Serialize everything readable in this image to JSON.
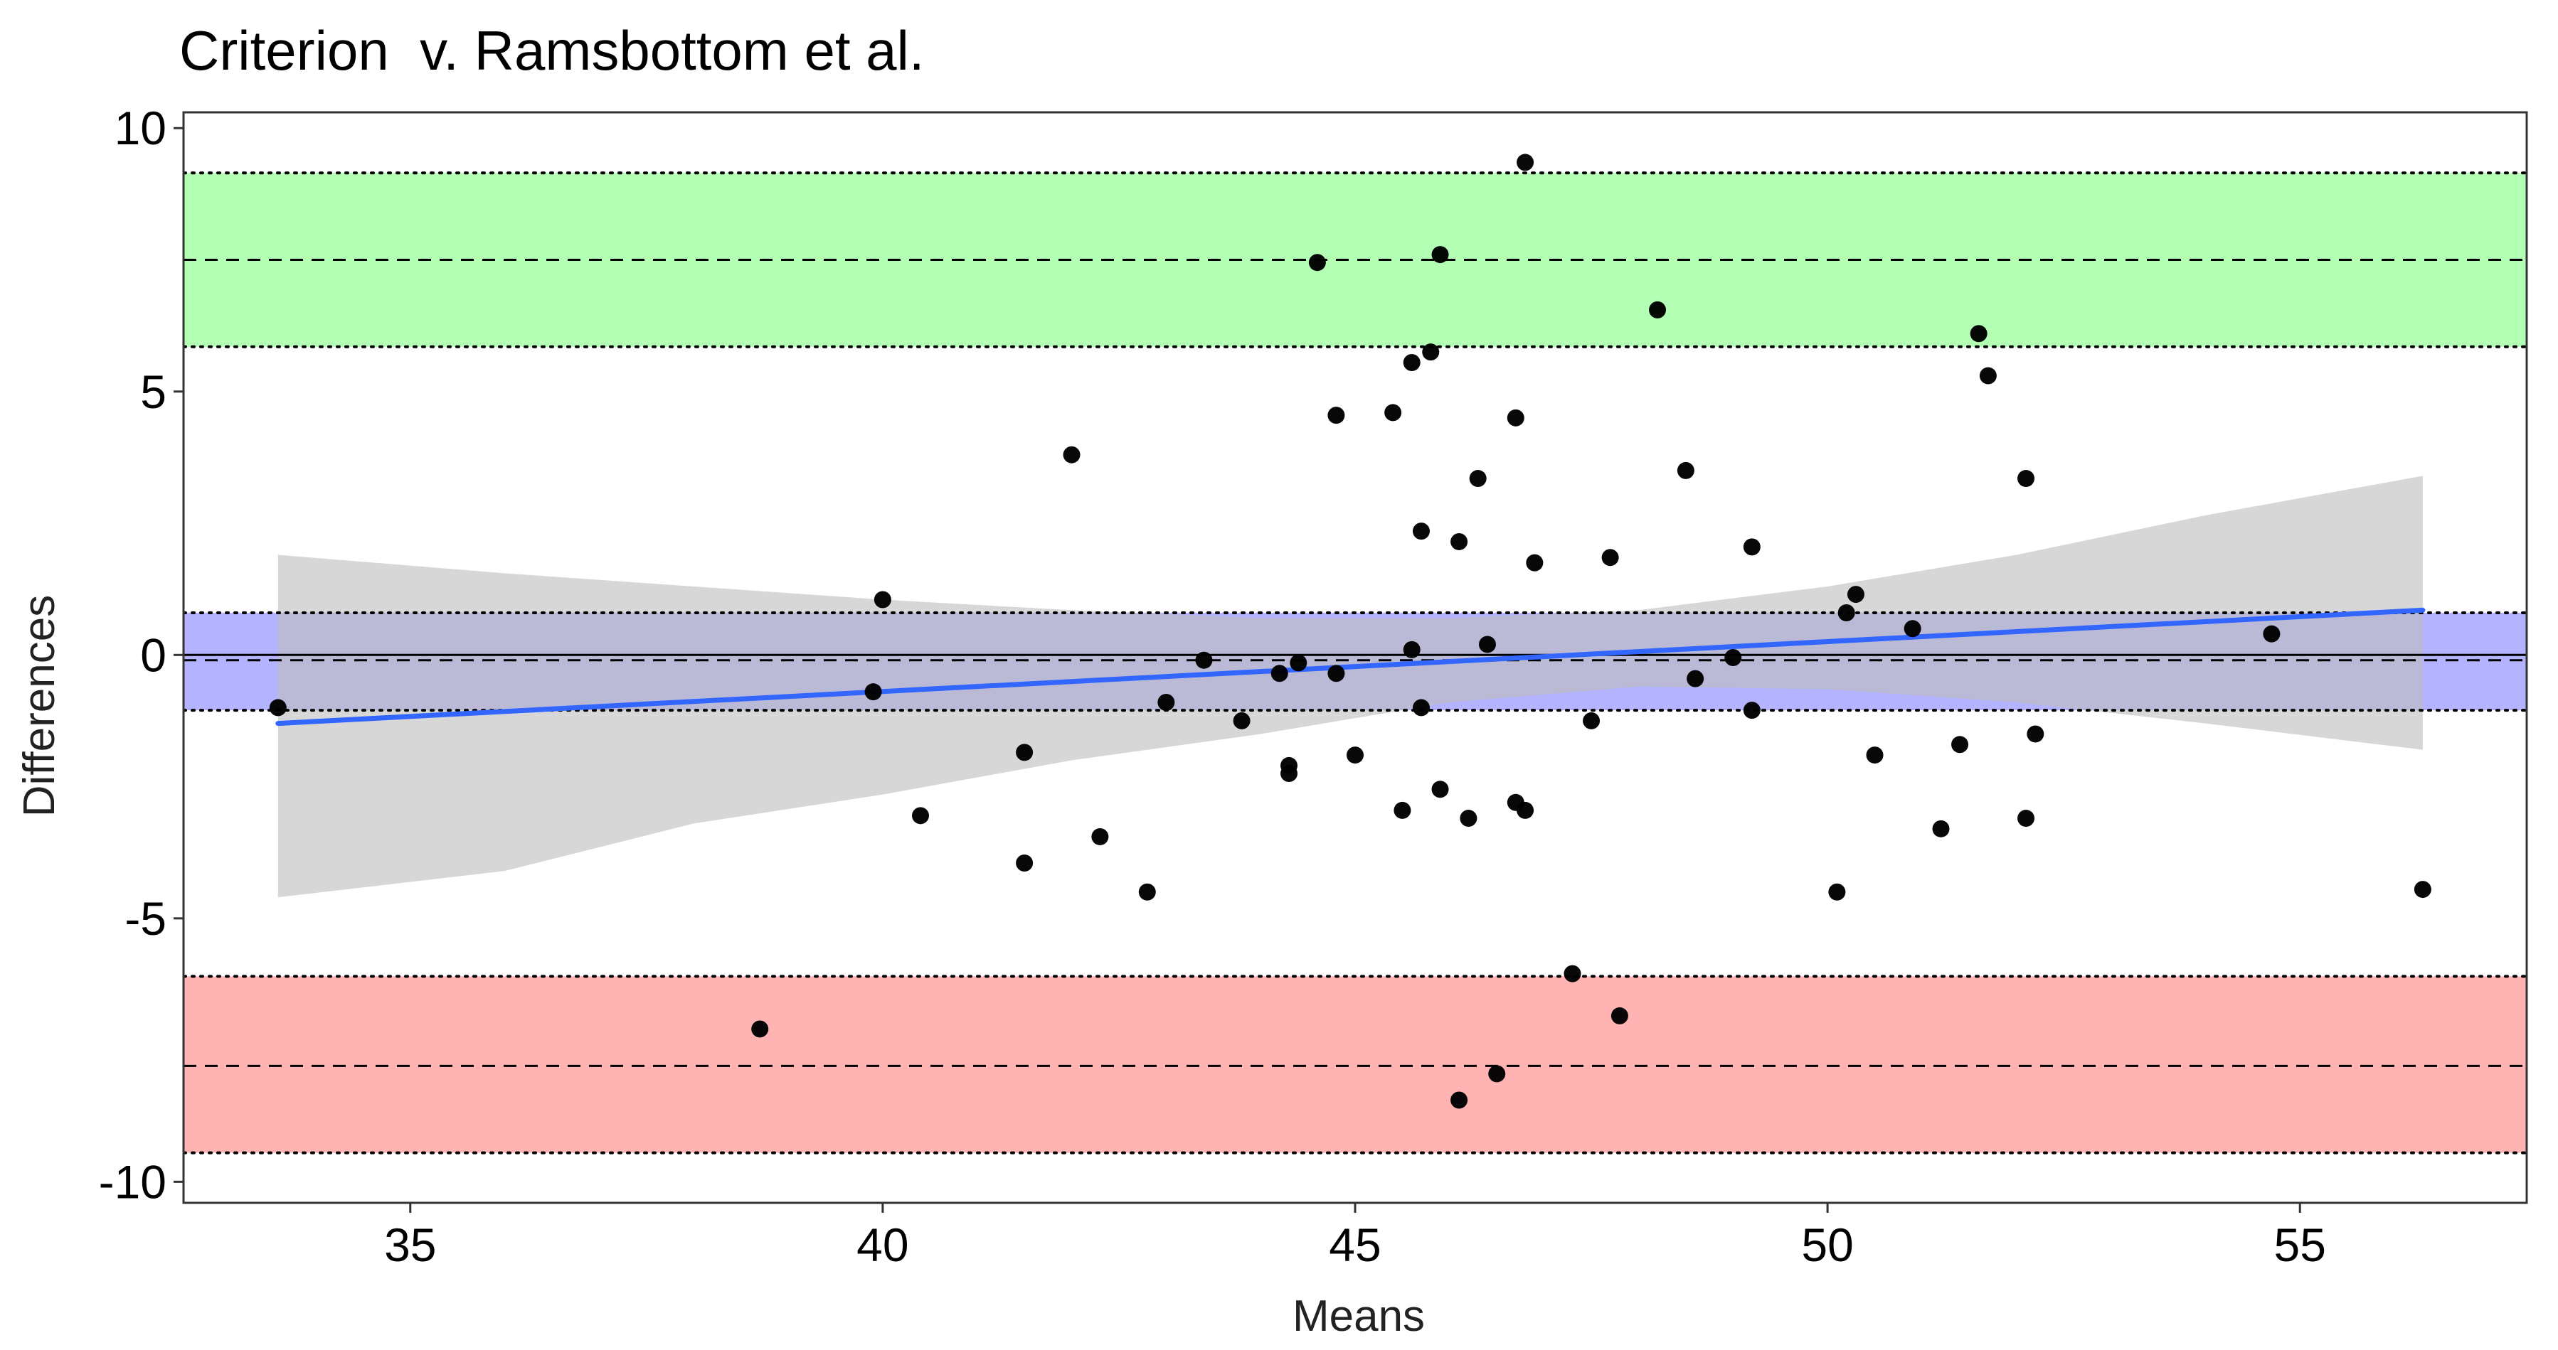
{
  "chart_data": {
    "type": "scatter",
    "title": "Criterion  v. Ramsbottom et al.",
    "xlabel": "Means",
    "ylabel": "Differences",
    "xlim": [
      32.6,
      57.4
    ],
    "ylim": [
      -10.4,
      10.3
    ],
    "x_ticks": [
      35,
      40,
      45,
      50,
      55
    ],
    "y_ticks": [
      -10,
      -5,
      0,
      5,
      10
    ],
    "x_tick_labels": [
      "35",
      "40",
      "45",
      "50",
      "55"
    ],
    "y_tick_labels": [
      "-10",
      "-5",
      "0",
      "5",
      "10"
    ],
    "grid": false,
    "legend": "none",
    "colors": {
      "upper_band": "#b3ffb3",
      "lower_band": "#ffb3b3",
      "bias_band": "#b3b3ff",
      "confidence_band": "#bebebe",
      "regression_line": "#3366ff",
      "points": "#000000"
    },
    "bias": {
      "mean": -0.1,
      "ci_low": -1.05,
      "ci_high": 0.8
    },
    "upper_loa": {
      "mean": 7.5,
      "ci_low": 5.85,
      "ci_high": 9.15
    },
    "lower_loa": {
      "mean": -7.8,
      "ci_low": -9.45,
      "ci_high": -6.1
    },
    "zero_line": 0,
    "regression": {
      "x_start": 33.6,
      "y_start": -1.3,
      "x_end": 56.3,
      "y_end": 0.85
    },
    "confidence_band_edges": {
      "x": [
        33.6,
        36,
        38,
        40,
        42,
        44,
        46,
        48,
        50,
        52,
        54,
        56.3
      ],
      "upper": [
        1.9,
        1.55,
        1.3,
        1.05,
        0.85,
        0.7,
        0.7,
        0.85,
        1.3,
        1.9,
        2.65,
        3.4
      ],
      "lower": [
        -4.6,
        -4.1,
        -3.2,
        -2.65,
        -2.0,
        -1.5,
        -0.9,
        -0.6,
        -0.65,
        -0.9,
        -1.3,
        -1.8
      ]
    },
    "points": [
      {
        "x": 33.6,
        "y": -1.0
      },
      {
        "x": 38.7,
        "y": -7.1
      },
      {
        "x": 39.9,
        "y": -0.7
      },
      {
        "x": 40.0,
        "y": 1.05
      },
      {
        "x": 40.4,
        "y": -3.05
      },
      {
        "x": 41.5,
        "y": -1.85
      },
      {
        "x": 41.5,
        "y": -3.95
      },
      {
        "x": 42.0,
        "y": 3.8
      },
      {
        "x": 42.3,
        "y": -3.45
      },
      {
        "x": 42.8,
        "y": -4.5
      },
      {
        "x": 43.0,
        "y": -0.9
      },
      {
        "x": 43.4,
        "y": -0.1
      },
      {
        "x": 43.8,
        "y": -1.25
      },
      {
        "x": 44.2,
        "y": -0.35
      },
      {
        "x": 44.3,
        "y": -2.1
      },
      {
        "x": 44.3,
        "y": -2.25
      },
      {
        "x": 44.4,
        "y": -0.15
      },
      {
        "x": 44.6,
        "y": 7.45
      },
      {
        "x": 44.8,
        "y": -0.35
      },
      {
        "x": 44.8,
        "y": 4.55
      },
      {
        "x": 45.0,
        "y": -1.9
      },
      {
        "x": 45.4,
        "y": 4.6
      },
      {
        "x": 45.5,
        "y": -2.95
      },
      {
        "x": 45.6,
        "y": 0.1
      },
      {
        "x": 45.6,
        "y": 5.55
      },
      {
        "x": 45.7,
        "y": 2.35
      },
      {
        "x": 45.7,
        "y": -1.0
      },
      {
        "x": 45.8,
        "y": 5.75
      },
      {
        "x": 45.9,
        "y": 7.6
      },
      {
        "x": 45.9,
        "y": -2.55
      },
      {
        "x": 46.1,
        "y": 2.15
      },
      {
        "x": 46.1,
        "y": -8.45
      },
      {
        "x": 46.2,
        "y": -3.1
      },
      {
        "x": 46.3,
        "y": 3.35
      },
      {
        "x": 46.4,
        "y": 0.2
      },
      {
        "x": 46.5,
        "y": -7.95
      },
      {
        "x": 46.7,
        "y": -2.8
      },
      {
        "x": 46.7,
        "y": 4.5
      },
      {
        "x": 46.8,
        "y": 9.35
      },
      {
        "x": 46.8,
        "y": -2.95
      },
      {
        "x": 46.9,
        "y": 1.75
      },
      {
        "x": 47.3,
        "y": -6.05
      },
      {
        "x": 47.5,
        "y": -1.25
      },
      {
        "x": 47.7,
        "y": 1.85
      },
      {
        "x": 47.8,
        "y": -6.85
      },
      {
        "x": 48.2,
        "y": 6.55
      },
      {
        "x": 48.5,
        "y": 3.5
      },
      {
        "x": 48.6,
        "y": -0.45
      },
      {
        "x": 49.0,
        "y": -0.05
      },
      {
        "x": 49.2,
        "y": 2.05
      },
      {
        "x": 49.2,
        "y": -1.05
      },
      {
        "x": 50.1,
        "y": -4.5
      },
      {
        "x": 50.2,
        "y": 0.8
      },
      {
        "x": 50.3,
        "y": 1.15
      },
      {
        "x": 50.5,
        "y": -1.9
      },
      {
        "x": 50.9,
        "y": 0.5
      },
      {
        "x": 51.2,
        "y": -3.3
      },
      {
        "x": 51.4,
        "y": -1.7
      },
      {
        "x": 51.6,
        "y": 6.1
      },
      {
        "x": 51.7,
        "y": 5.3
      },
      {
        "x": 52.1,
        "y": 3.35
      },
      {
        "x": 52.1,
        "y": -3.1
      },
      {
        "x": 52.2,
        "y": -1.5
      },
      {
        "x": 54.7,
        "y": 0.4
      },
      {
        "x": 56.3,
        "y": -4.45
      }
    ]
  }
}
